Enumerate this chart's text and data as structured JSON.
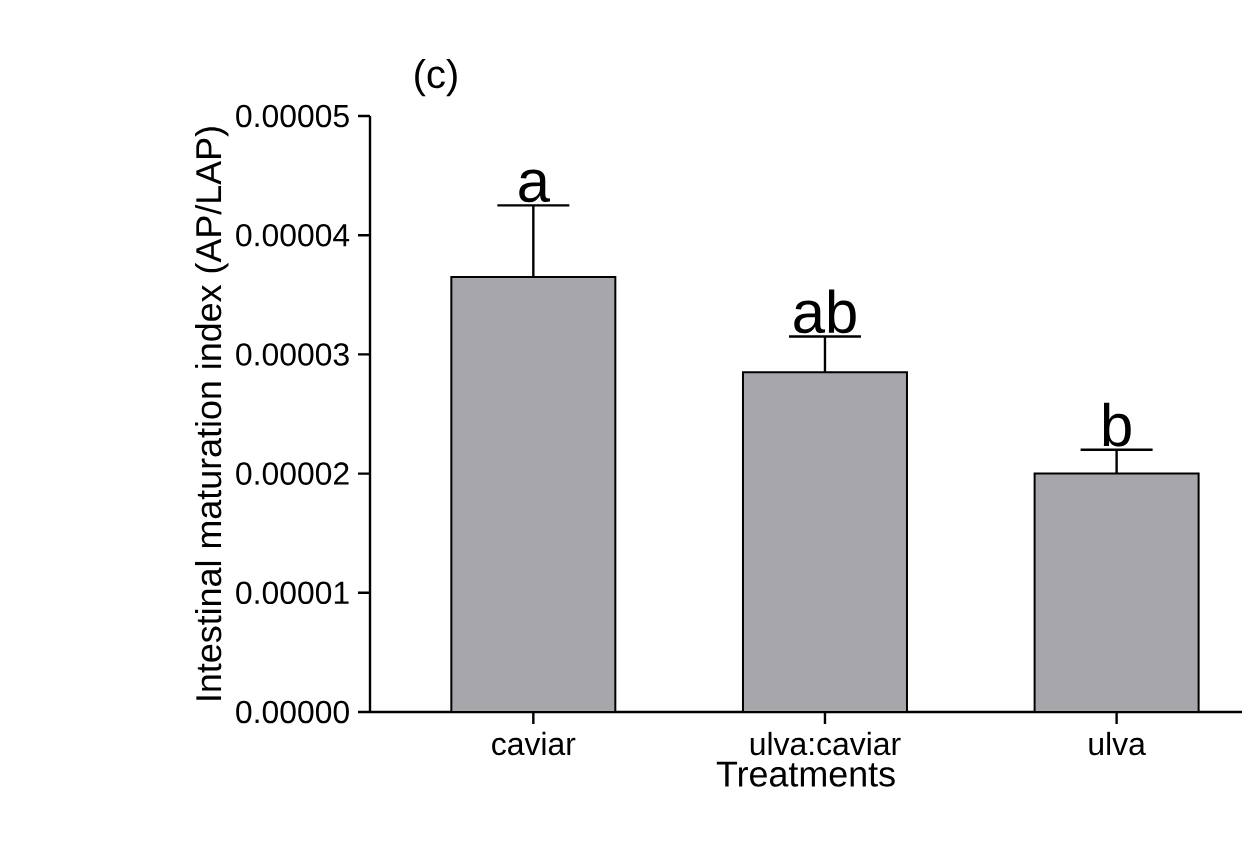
{
  "chart_data": {
    "type": "bar",
    "title": "(c)",
    "xlabel": "Treatments",
    "ylabel": "Intestinal maturation index (AP/LAP)",
    "categories": [
      "caviar",
      "ulva:caviar",
      "ulva"
    ],
    "values": [
      3.65e-05,
      2.85e-05,
      2e-05
    ],
    "errors": [
      [
        3.65e-05,
        4.25e-05
      ],
      [
        2.85e-05,
        3.15e-05
      ],
      [
        2e-05,
        2.2e-05
      ]
    ],
    "color": "#a7a6ab",
    "ylim": [
      0,
      5e-05
    ],
    "yticks": [
      {
        "value": 0,
        "label": "0.00000"
      },
      {
        "value": 1e-05,
        "label": "0.00001"
      },
      {
        "value": 2e-05,
        "label": "0.00002"
      },
      {
        "value": 3e-05,
        "label": "0.00003"
      },
      {
        "value": 4e-05,
        "label": "0.00004"
      },
      {
        "value": 5e-05,
        "label": "0.00005"
      }
    ],
    "annotations": [
      {
        "text": "a",
        "x": "caviar",
        "y": 4.25e-05
      },
      {
        "text": "ab",
        "x": "ulva:caviar",
        "y": 3.15e-05
      },
      {
        "text": "b",
        "x": "ulva",
        "y": 2.2e-05
      }
    ],
    "grid": false
  }
}
